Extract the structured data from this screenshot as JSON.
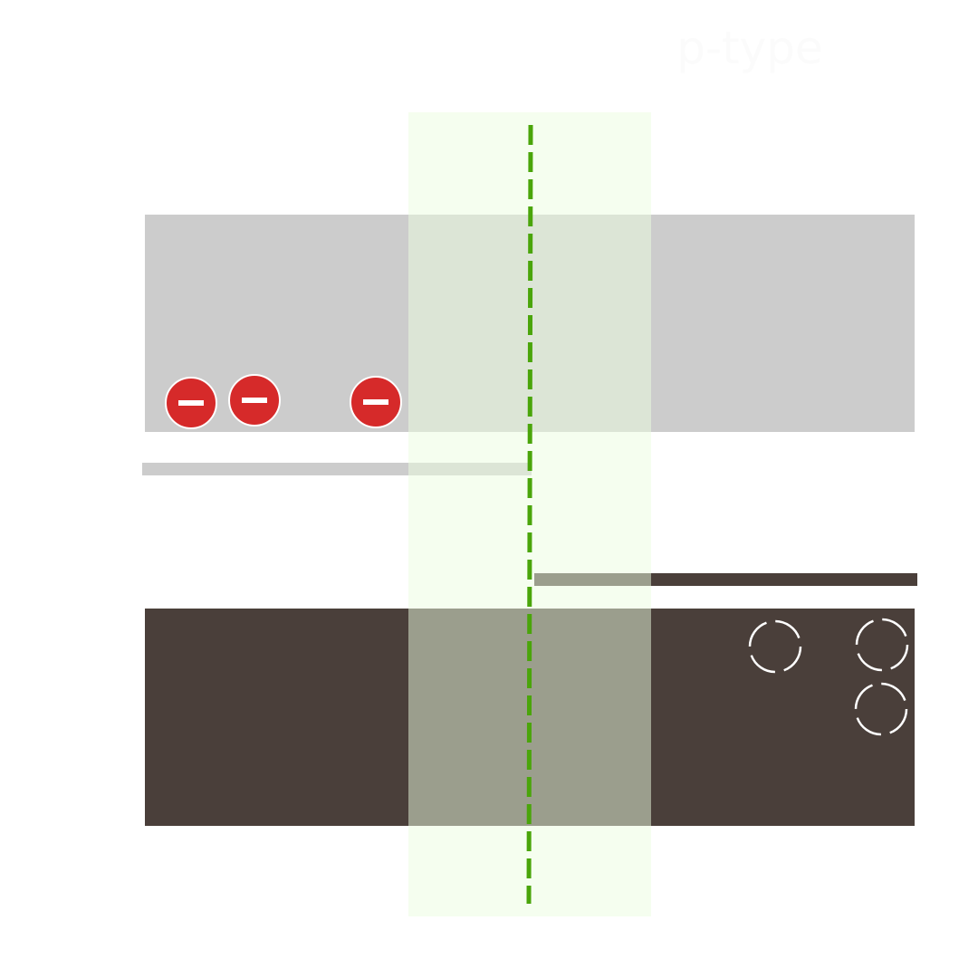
{
  "labels": {
    "p_type": "p-type"
  },
  "colors": {
    "background": "#ffffff",
    "conduction_band": "#cccccc",
    "valence_band": "#4a3f3a",
    "depletion_region": "#f2fdea",
    "junction_line": "#4aa50a",
    "electron": "#d62a2a",
    "electron_symbol": "#ffffff",
    "hole_outline": "#ffffff",
    "label_text": "#fbfbfb"
  },
  "electrons": {
    "count": 3,
    "symbol": "minus-icon"
  },
  "holes": {
    "count": 3,
    "symbol": "dashed-circle-icon"
  }
}
